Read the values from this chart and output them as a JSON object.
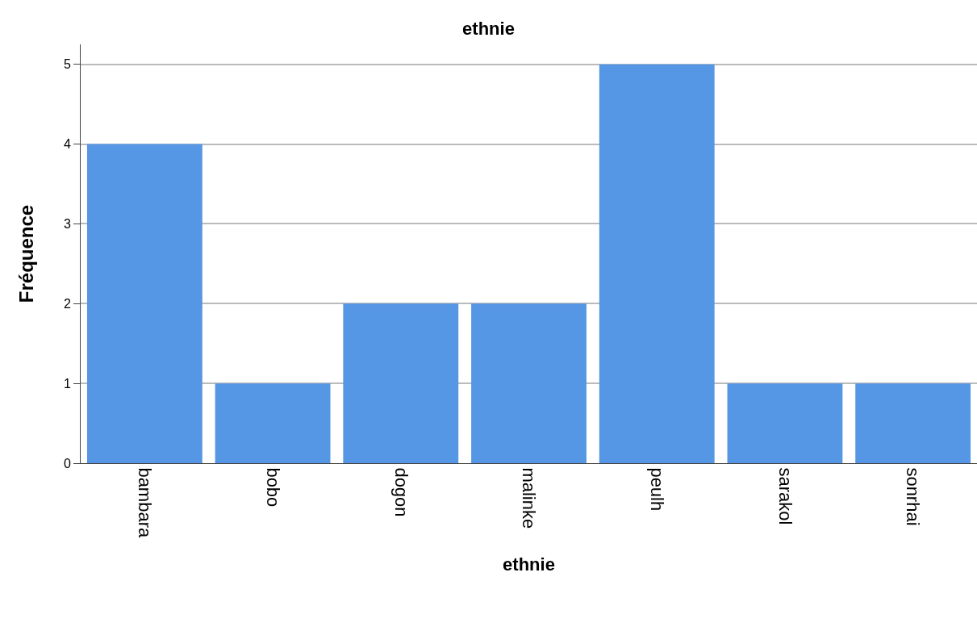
{
  "chart_data": {
    "type": "bar",
    "title": "ethnie",
    "xlabel": "ethnie",
    "ylabel": "Fréquence",
    "categories": [
      "bambara",
      "bobo",
      "dogon",
      "malinke",
      "peulh",
      "sarakol",
      "sonrhai"
    ],
    "values": [
      4,
      1,
      2,
      2,
      5,
      1,
      1
    ],
    "color": "#5596e5",
    "ylim": [
      0,
      5.25
    ],
    "yticks": [
      0,
      1,
      2,
      3,
      4,
      5
    ],
    "grid": "y"
  }
}
